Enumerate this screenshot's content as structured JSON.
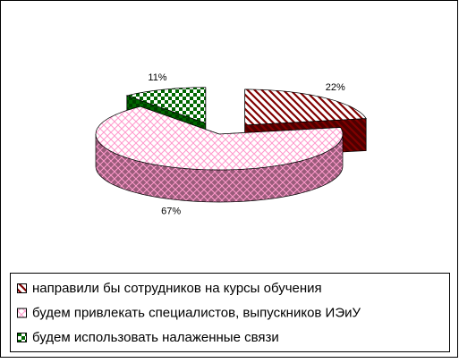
{
  "chart_data": {
    "type": "pie3d",
    "categories": [
      "направили бы сотрудников на курсы обучения",
      "будем привлекать специалистов, выпускников ИЭиУ",
      "будем использовать налаженные связи"
    ],
    "values": [
      22,
      67,
      11
    ],
    "value_labels": [
      "22%",
      "67%",
      "11%"
    ],
    "colors": [
      "#800000",
      "#ff99cc",
      "#006600"
    ],
    "fill_patterns": [
      "diagonal",
      "crosshatch",
      "checker"
    ],
    "legend": "bottom"
  }
}
